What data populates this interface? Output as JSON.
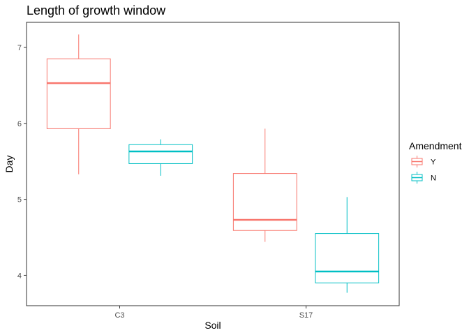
{
  "chart_data": {
    "type": "boxplot",
    "title": "Length of growth window",
    "xlabel": "Soil",
    "ylabel": "Day",
    "categories": [
      "C3",
      "S17"
    ],
    "ylim": [
      3.6,
      7.33
    ],
    "yticks": [
      "4",
      "5",
      "6",
      "7"
    ],
    "grid": false,
    "legend": {
      "title": "Amendment",
      "position": "right"
    },
    "series": [
      {
        "name": "Y",
        "color": "#F8766D",
        "boxes": [
          {
            "min": 5.33,
            "q1": 5.93,
            "median": 6.53,
            "q3": 6.85,
            "max": 7.17
          },
          {
            "min": 4.44,
            "q1": 4.59,
            "median": 4.73,
            "q3": 5.34,
            "max": 5.93
          }
        ]
      },
      {
        "name": "N",
        "color": "#00BFC4",
        "boxes": [
          {
            "min": 5.31,
            "q1": 5.47,
            "median": 5.63,
            "q3": 5.72,
            "max": 5.79
          },
          {
            "min": 3.77,
            "q1": 3.9,
            "median": 4.05,
            "q3": 4.55,
            "max": 5.03
          }
        ]
      }
    ]
  }
}
